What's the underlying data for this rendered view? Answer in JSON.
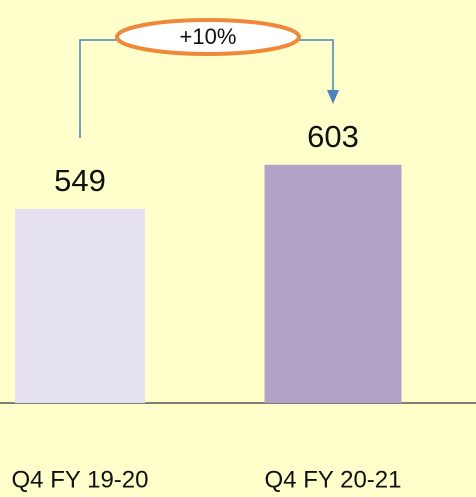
{
  "chart_data": {
    "type": "bar",
    "categories": [
      "Q4 FY 19-20",
      "Q4 FY 20-21"
    ],
    "values": [
      549,
      603
    ],
    "colors": [
      "#E4E0F0",
      "#B3A2C7"
    ],
    "ylim": [
      311,
      805
    ],
    "annotation": "+10%"
  }
}
